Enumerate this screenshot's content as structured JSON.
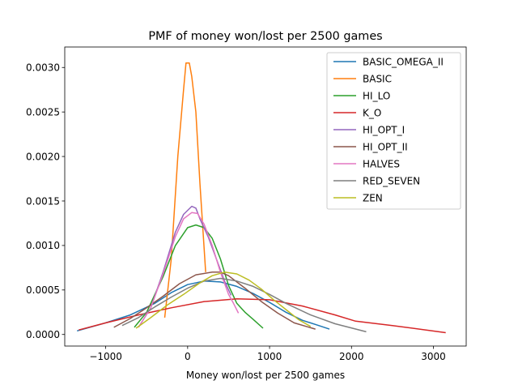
{
  "chart_data": {
    "type": "line",
    "title": "PMF of money won/lost per 2500 games",
    "xlabel": "Money won/lost per 2500 games",
    "ylabel": "",
    "xlim": [
      -1500,
      3400
    ],
    "ylim": [
      -0.00013,
      0.00323
    ],
    "xticks": [
      -1000,
      0,
      1000,
      2000,
      3000
    ],
    "xtick_labels": [
      "−1000",
      "0",
      "1000",
      "2000",
      "3000"
    ],
    "yticks": [
      0.0,
      0.0005,
      0.001,
      0.0015,
      0.002,
      0.0025,
      0.003
    ],
    "ytick_labels": [
      "0.0000",
      "0.0005",
      "0.0010",
      "0.0015",
      "0.0020",
      "0.0025",
      "0.0030"
    ],
    "grid": false,
    "legend_position": "top-right",
    "series": [
      {
        "name": "BASIC_OMEGA_II",
        "color": "#1f77b4",
        "x": [
          -1350,
          -1000,
          -700,
          -400,
          -200,
          0,
          200,
          400,
          600,
          800,
          1000,
          1200,
          1400,
          1600,
          1730
        ],
        "y": [
          4e-05,
          0.00013,
          0.00022,
          0.00035,
          0.00047,
          0.00056,
          0.0006,
          0.00059,
          0.00054,
          0.00046,
          0.00036,
          0.00025,
          0.00016,
          0.0001,
          6e-05
        ]
      },
      {
        "name": "BASIC",
        "color": "#ff7f0e",
        "x": [
          -280,
          -200,
          -120,
          -50,
          -20,
          0,
          20,
          50,
          100,
          150,
          220
        ],
        "y": [
          0.00019,
          0.00085,
          0.002,
          0.00275,
          0.00305,
          0.00305,
          0.00305,
          0.0029,
          0.0025,
          0.0017,
          0.0007
        ]
      },
      {
        "name": "HI_LO",
        "color": "#2ca02c",
        "x": [
          -650,
          -500,
          -300,
          -150,
          0,
          100,
          200,
          300,
          400,
          500,
          600,
          700,
          800,
          920
        ],
        "y": [
          8e-05,
          0.00025,
          0.00065,
          0.001,
          0.0012,
          0.00123,
          0.0012,
          0.00108,
          0.00085,
          0.00055,
          0.00035,
          0.00025,
          0.00017,
          7e-05
        ]
      },
      {
        "name": "K_O",
        "color": "#d62728",
        "x": [
          -1330,
          -1000,
          -600,
          -200,
          200,
          600,
          1000,
          1400,
          1800,
          2050,
          2500,
          3150
        ],
        "y": [
          5e-05,
          0.00013,
          0.00022,
          0.0003,
          0.00037,
          0.0004,
          0.00039,
          0.00032,
          0.00022,
          0.00015,
          0.0001,
          2e-05
        ]
      },
      {
        "name": "HI_OPT_I",
        "color": "#9467bd",
        "x": [
          -600,
          -450,
          -300,
          -150,
          -50,
          50,
          100,
          150,
          250,
          350,
          450,
          530
        ],
        "y": [
          8e-05,
          0.0003,
          0.0007,
          0.00115,
          0.00135,
          0.00144,
          0.00142,
          0.0013,
          0.0011,
          0.00085,
          0.0006,
          0.00044
        ]
      },
      {
        "name": "HI_OPT_II",
        "color": "#8c564b",
        "x": [
          -900,
          -700,
          -500,
          -300,
          -100,
          100,
          300,
          400,
          500,
          700,
          900,
          1100,
          1300,
          1560
        ],
        "y": [
          8e-05,
          0.00018,
          0.0003,
          0.00043,
          0.00057,
          0.00067,
          0.0007,
          0.0007,
          0.00066,
          0.00052,
          0.00037,
          0.00024,
          0.00013,
          6e-05
        ]
      },
      {
        "name": "HALVES",
        "color": "#e377c2",
        "x": [
          -600,
          -450,
          -300,
          -150,
          -50,
          50,
          120,
          200,
          300,
          400,
          500,
          560,
          620
        ],
        "y": [
          8e-05,
          0.0003,
          0.00068,
          0.0011,
          0.0013,
          0.00137,
          0.00136,
          0.00124,
          0.001,
          0.0007,
          0.00045,
          0.00035,
          0.00024
        ]
      },
      {
        "name": "RED_SEVEN",
        "color": "#7f7f7f",
        "x": [
          -800,
          -600,
          -400,
          -200,
          0,
          200,
          400,
          600,
          800,
          1000,
          1200,
          1500,
          1800,
          2180
        ],
        "y": [
          0.0001,
          0.00019,
          0.00031,
          0.00042,
          0.00052,
          0.0006,
          0.00063,
          0.0006,
          0.00054,
          0.00045,
          0.00035,
          0.00022,
          0.00012,
          3e-05
        ]
      },
      {
        "name": "ZEN",
        "color": "#bcbd22",
        "x": [
          -630,
          -450,
          -250,
          -50,
          150,
          300,
          450,
          600,
          750,
          900,
          1050,
          1200,
          1350,
          1500
        ],
        "y": [
          7e-05,
          0.00019,
          0.00033,
          0.00045,
          0.00058,
          0.00066,
          0.0007,
          0.00068,
          0.00061,
          0.00051,
          0.00039,
          0.00028,
          0.00017,
          9e-05
        ]
      }
    ]
  }
}
